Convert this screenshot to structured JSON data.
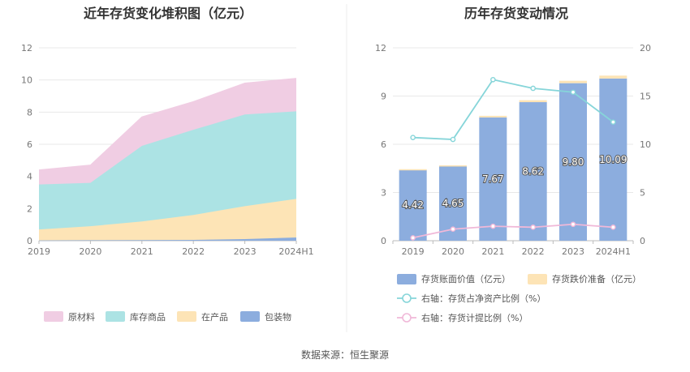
{
  "source_text": "数据来源：恒生聚源",
  "colors": {
    "raw": "#f0cde3",
    "stock": "#ace3e4",
    "wip": "#fde4b6",
    "pack": "#8cadde",
    "bar": "#8cadde",
    "bar_top": "#fde4b6",
    "line1": "#86d5d9",
    "line2": "#f0b8d8"
  },
  "chart_data": [
    {
      "type": "area",
      "stacked": true,
      "title": "近年存货变化堆积图（亿元）",
      "categories": [
        "2019",
        "2020",
        "2021",
        "2022",
        "2023",
        "2024H1"
      ],
      "y_ticks": [
        "0",
        "2",
        "4",
        "6",
        "8",
        "10",
        "12"
      ],
      "ylim": [
        0,
        12
      ],
      "series": [
        {
          "name": "包装物",
          "key": "pack",
          "values": [
            0.02,
            0.03,
            0.04,
            0.05,
            0.1,
            0.2
          ]
        },
        {
          "name": "在产品",
          "key": "wip",
          "values": [
            0.68,
            0.87,
            1.16,
            1.55,
            2.05,
            2.4
          ]
        },
        {
          "name": "库存商品",
          "key": "stock",
          "values": [
            2.8,
            2.7,
            4.7,
            5.3,
            5.7,
            5.45
          ]
        },
        {
          "name": "原材料",
          "key": "raw",
          "values": [
            0.9,
            1.1,
            1.8,
            1.75,
            1.95,
            2.05
          ]
        }
      ],
      "legend": [
        {
          "name": "原材料",
          "key": "raw"
        },
        {
          "name": "库存商品",
          "key": "stock"
        },
        {
          "name": "在产品",
          "key": "wip"
        },
        {
          "name": "包装物",
          "key": "pack"
        }
      ],
      "legend_position": "bottom"
    },
    {
      "type": "bar",
      "title": "历年存货变动情况",
      "categories": [
        "2019",
        "2020",
        "2021",
        "2022",
        "2023",
        "2024H1"
      ],
      "y_ticks": [
        "0",
        "3",
        "6",
        "9",
        "12"
      ],
      "ylim": [
        0,
        12
      ],
      "y2_ticks": [
        "0",
        "5",
        "10",
        "15",
        "20"
      ],
      "y2lim": [
        0,
        20
      ],
      "bar_values": [
        4.42,
        4.65,
        7.67,
        8.62,
        9.8,
        10.09
      ],
      "bar_labels": [
        "4.42",
        "4.65",
        "7.67",
        "8.62",
        "9.80",
        "10.09"
      ],
      "bar_top_values": [
        0.03,
        0.04,
        0.1,
        0.12,
        0.15,
        0.18
      ],
      "line_net_asset_ratio": [
        10.7,
        10.5,
        16.7,
        15.8,
        15.4,
        12.3
      ],
      "line_provision_ratio": [
        0.3,
        1.2,
        1.5,
        1.4,
        1.7,
        1.4
      ],
      "legend": [
        {
          "name": "存货账面价值（亿元）",
          "key": "bar",
          "kind": "box"
        },
        {
          "name": "存货跌价准备（亿元）",
          "key": "bar_top",
          "kind": "box"
        },
        {
          "name": "右轴：存货占净资产比例（%）",
          "key": "line1",
          "kind": "line"
        },
        {
          "name": "右轴：存货计提比例（%）",
          "key": "line2",
          "kind": "line"
        }
      ],
      "legend_position": "bottom"
    }
  ]
}
